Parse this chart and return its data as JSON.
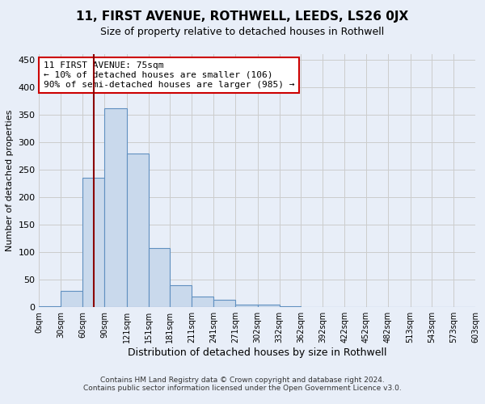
{
  "title": "11, FIRST AVENUE, ROTHWELL, LEEDS, LS26 0JX",
  "subtitle": "Size of property relative to detached houses in Rothwell",
  "xlabel": "Distribution of detached houses by size in Rothwell",
  "ylabel": "Number of detached properties",
  "footer_line1": "Contains HM Land Registry data © Crown copyright and database right 2024.",
  "footer_line2": "Contains public sector information licensed under the Open Government Licence v3.0.",
  "annotation_line1": "11 FIRST AVENUE: 75sqm",
  "annotation_line2": "← 10% of detached houses are smaller (106)",
  "annotation_line3": "90% of semi-detached houses are larger (985) →",
  "bar_left_edges": [
    0,
    30,
    60,
    90,
    121,
    151,
    181,
    211,
    241,
    271,
    302,
    332,
    362,
    392,
    422,
    452,
    482,
    513,
    543,
    573
  ],
  "bar_widths": [
    30,
    30,
    30,
    31,
    30,
    30,
    30,
    30,
    30,
    31,
    30,
    30,
    30,
    30,
    30,
    30,
    31,
    30,
    30,
    30
  ],
  "bar_heights": [
    2,
    30,
    235,
    362,
    280,
    107,
    40,
    19,
    13,
    5,
    5,
    2,
    0,
    0,
    0,
    0,
    0,
    0,
    0,
    0
  ],
  "tick_labels": [
    "0sqm",
    "30sqm",
    "60sqm",
    "90sqm",
    "121sqm",
    "151sqm",
    "181sqm",
    "211sqm",
    "241sqm",
    "271sqm",
    "302sqm",
    "332sqm",
    "362sqm",
    "392sqm",
    "422sqm",
    "452sqm",
    "482sqm",
    "513sqm",
    "543sqm",
    "573sqm",
    "603sqm"
  ],
  "bar_fill_color": "#c9d9ec",
  "bar_edge_color": "#6090c0",
  "vline_x": 75,
  "vline_color": "#8b0000",
  "annotation_box_edge": "#cc0000",
  "ylim": [
    0,
    460
  ],
  "yticks": [
    0,
    50,
    100,
    150,
    200,
    250,
    300,
    350,
    400,
    450
  ],
  "grid_color": "#cccccc",
  "bg_color": "#e8eef8",
  "plot_bg_color": "#e8eef8",
  "title_fontsize": 11,
  "subtitle_fontsize": 9,
  "xlabel_fontsize": 9,
  "ylabel_fontsize": 8,
  "xtick_fontsize": 7,
  "ytick_fontsize": 8,
  "footer_fontsize": 6.5,
  "annotation_fontsize": 8
}
